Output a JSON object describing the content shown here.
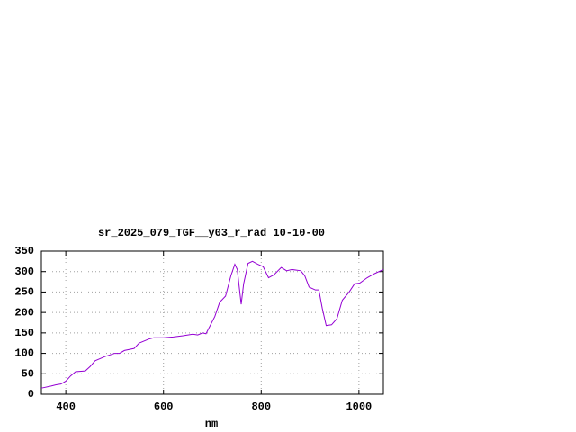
{
  "chart_data": {
    "type": "line",
    "title": "sr_2025_079_TGF__y03_r_rad 10-10-00",
    "x_label": "nm",
    "x": [
      350,
      370,
      380,
      390,
      400,
      410,
      420,
      440,
      450,
      460,
      480,
      500,
      510,
      520,
      540,
      550,
      570,
      580,
      600,
      620,
      640,
      660,
      670,
      680,
      687,
      705,
      715,
      727,
      738,
      746,
      751,
      759,
      764,
      773,
      782,
      793,
      804,
      815,
      826,
      841,
      852,
      863,
      881,
      889,
      898,
      911,
      918,
      925,
      933,
      944,
      955,
      966,
      980,
      991,
      1002,
      1017,
      1032,
      1050
    ],
    "values": [
      15,
      20,
      23,
      25,
      32,
      45,
      55,
      57,
      68,
      82,
      92,
      100,
      100,
      107,
      112,
      125,
      135,
      138,
      138,
      140,
      143,
      147,
      145,
      150,
      148,
      190,
      225,
      240,
      290,
      318,
      305,
      220,
      270,
      320,
      325,
      318,
      312,
      285,
      292,
      310,
      302,
      305,
      302,
      290,
      262,
      255,
      255,
      210,
      168,
      170,
      185,
      230,
      250,
      270,
      272,
      285,
      295,
      305
    ],
    "color": "#9400d3",
    "xlim": [
      350,
      1050
    ],
    "ylim": [
      0,
      350
    ],
    "xticks": [
      400,
      600,
      800,
      1000
    ],
    "yticks": [
      0,
      50,
      100,
      150,
      200,
      250,
      300,
      350
    ],
    "grid": true
  }
}
